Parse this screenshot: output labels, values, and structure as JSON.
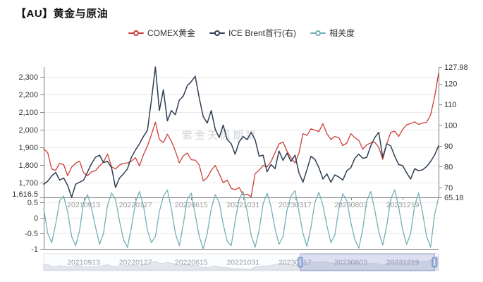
{
  "watermark": "紫金天风期货",
  "chart_data": {
    "type": "line",
    "title": "【AU】黄金与原油",
    "x_ticks": [
      {
        "label": "20210913",
        "index": 10
      },
      {
        "label": "20220127",
        "index": 23
      },
      {
        "label": "20220615",
        "index": 37
      },
      {
        "label": "20221031",
        "index": 50
      },
      {
        "label": "20230317",
        "index": 63
      },
      {
        "label": "20230803",
        "index": 77
      },
      {
        "label": "20231219",
        "index": 90
      }
    ],
    "left_axis": {
      "tick_labels": [
        "2,300",
        "2,200",
        "2,100",
        "2,000",
        "1,900",
        "1,800",
        "1,700",
        "1,616.5"
      ],
      "tick_values": [
        2300,
        2200,
        2100,
        2000,
        1900,
        1800,
        1700,
        1616.5
      ],
      "min": 1616.5,
      "max": 2300
    },
    "right_axis": {
      "tick_labels": [
        "127.98",
        "120",
        "110",
        "100",
        "90",
        "80",
        "70",
        "65.18"
      ],
      "tick_values": [
        127.98,
        120,
        110,
        100,
        90,
        80,
        70,
        65.18
      ],
      "min": 65.18,
      "max": 127.98
    },
    "corr_axis": {
      "tick_labels": [
        "0.5",
        "0",
        "-0.5",
        "-1"
      ],
      "tick_values": [
        0.5,
        0,
        -0.5,
        -1
      ],
      "min": -1,
      "max": 1
    },
    "series": [
      {
        "name": "COMEX黄金",
        "axis": "left",
        "color": "#cc3e39",
        "values": [
          1892,
          1870,
          1778,
          1770,
          1810,
          1802,
          1740,
          1788,
          1810,
          1822,
          1755,
          1740,
          1762,
          1768,
          1795,
          1818,
          1862,
          1790,
          1778,
          1800,
          1810,
          1812,
          1822,
          1842,
          1795,
          1858,
          1908,
          1972,
          2043,
          1945,
          1928,
          1975,
          1935,
          1880,
          1812,
          1852,
          1868,
          1830,
          1828,
          1800,
          1710,
          1728,
          1770,
          1798,
          1750,
          1700,
          1715,
          1668,
          1660,
          1672,
          1630,
          1635,
          1620,
          1752,
          1770,
          1798,
          1790,
          1820,
          1870,
          1920,
          1930,
          1878,
          1842,
          1812,
          1868,
          1978,
          1968,
          2005,
          1998,
          1990,
          2035,
          1978,
          1945,
          1962,
          1955,
          1910,
          1925,
          1978,
          1955,
          1940,
          1890,
          1915,
          1925,
          1930,
          1900,
          1832,
          1920,
          1985,
          1992,
          1962,
          2002,
          2028,
          2035,
          2045,
          2030,
          2038,
          2042,
          2085,
          2185,
          2320
        ]
      },
      {
        "name": "ICE Brent首行(右)",
        "axis": "right",
        "color": "#2e3f54",
        "values": [
          71.5,
          73,
          75.5,
          77.2,
          73.5,
          74.5,
          71,
          65.2,
          71.5,
          72.5,
          73.5,
          77.5,
          81.5,
          84.5,
          85.5,
          82,
          82.5,
          79.5,
          69.9,
          74.5,
          76.5,
          79,
          84.5,
          88,
          91,
          94.5,
          97.5,
          112,
          127.98,
          107,
          117,
          102,
          107,
          105,
          112,
          114,
          119,
          121,
          123.5,
          113,
          104,
          101,
          107,
          98,
          94,
          100,
          93,
          91,
          86,
          92,
          94.5,
          93,
          96.5,
          93,
          85,
          85.5,
          77.5,
          81,
          79,
          87.5,
          83,
          86.5,
          82.5,
          85.5,
          77,
          72.5,
          78.5,
          85,
          83.5,
          79.5,
          74,
          76.5,
          72.5,
          76,
          75,
          73.5,
          78,
          79.5,
          84,
          86,
          84,
          84.5,
          90,
          94,
          96.5,
          84.5,
          91,
          90,
          85,
          81,
          80.5,
          77,
          74,
          79,
          78,
          78.5,
          80,
          82.5,
          85.5,
          90
        ]
      },
      {
        "name": "相关度",
        "axis": "corr",
        "color": "#74b0b6",
        "values": [
          0.3,
          -0.5,
          -0.8,
          -0.2,
          0.55,
          0.7,
          0.2,
          -0.6,
          -0.9,
          -0.4,
          0.5,
          0.75,
          0.3,
          -0.3,
          -0.85,
          -0.5,
          0.4,
          0.8,
          0.6,
          -0.1,
          -0.7,
          -0.95,
          -0.3,
          0.5,
          0.85,
          0.4,
          -0.4,
          -0.8,
          -0.6,
          0.2,
          0.7,
          0.9,
          0.3,
          -0.5,
          -0.9,
          -0.2,
          0.6,
          0.8,
          0.1,
          -0.6,
          -1,
          -0.5,
          0.3,
          0.75,
          0.5,
          -0.2,
          -0.75,
          -0.9,
          -0.1,
          0.6,
          0.85,
          0.2,
          -0.55,
          -0.95,
          -0.4,
          0.45,
          0.8,
          0.35,
          -0.35,
          -0.85,
          -0.6,
          0.25,
          0.7,
          0.88,
          0.2,
          -0.5,
          -0.92,
          -0.3,
          0.5,
          0.82,
          0.4,
          -0.25,
          -0.8,
          -0.55,
          0.3,
          0.78,
          0.55,
          -0.15,
          -0.7,
          -0.98,
          -0.35,
          0.55,
          0.85,
          0.25,
          -0.45,
          -0.88,
          -0.25,
          0.6,
          0.9,
          0.35,
          -0.4,
          -0.86,
          -0.5,
          0.4,
          0.8,
          0.15,
          -0.6,
          -0.94,
          0.1,
          0.65
        ]
      }
    ],
    "navigator": {
      "selection": [
        0.65,
        0.99
      ]
    }
  }
}
